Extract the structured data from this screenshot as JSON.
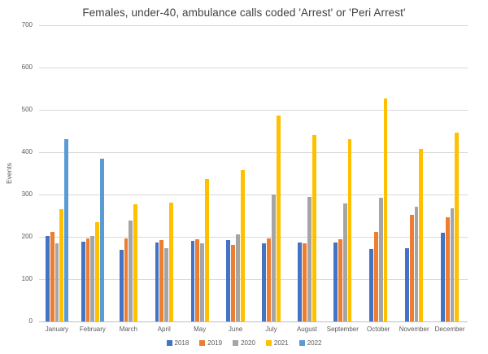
{
  "chart_data": {
    "type": "bar",
    "title": "Females, under-40, ambulance calls coded 'Arrest' or 'Peri Arrest'",
    "xlabel": "",
    "ylabel": "Events",
    "ylim": [
      0,
      700
    ],
    "yticks": [
      0,
      100,
      200,
      300,
      400,
      500,
      600,
      700
    ],
    "grid": true,
    "legend_position": "bottom",
    "categories": [
      "January",
      "February",
      "March",
      "April",
      "May",
      "June",
      "July",
      "August",
      "September",
      "October",
      "November",
      "December"
    ],
    "series": [
      {
        "name": "2018",
        "color": "#4472C4",
        "values": [
          202,
          188,
          170,
          186,
          190,
          192,
          185,
          186,
          186,
          172,
          173,
          210
        ]
      },
      {
        "name": "2019",
        "color": "#ED7D31",
        "values": [
          211,
          197,
          197,
          192,
          195,
          180,
          197,
          184,
          194,
          211,
          251,
          247
        ]
      },
      {
        "name": "2020",
        "color": "#A5A5A5",
        "values": [
          184,
          201,
          239,
          173,
          184,
          205,
          300,
          294,
          278,
          292,
          272,
          267
        ]
      },
      {
        "name": "2021",
        "color": "#FFC000",
        "values": [
          266,
          235,
          276,
          280,
          337,
          357,
          487,
          441,
          431,
          526,
          408,
          446
        ]
      },
      {
        "name": "2022",
        "color": "#5B9BD5",
        "values": [
          430,
          385,
          null,
          null,
          null,
          null,
          null,
          null,
          null,
          null,
          null,
          null
        ]
      }
    ],
    "colors": {
      "title_text": "#3F3F3F",
      "axis_text": "#595959",
      "gridline": "#D9D9D9"
    }
  }
}
